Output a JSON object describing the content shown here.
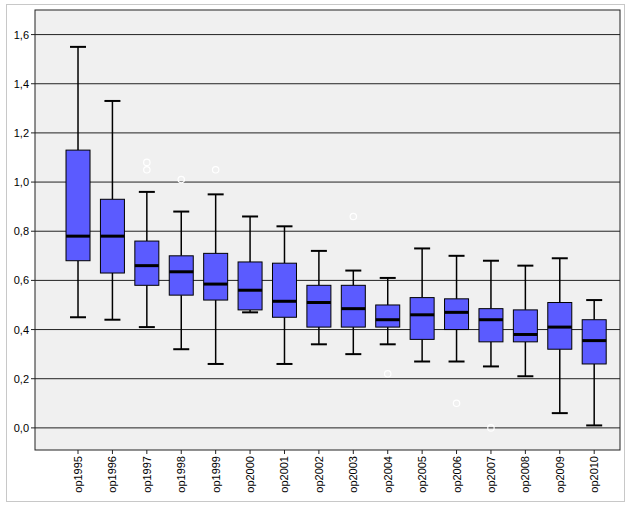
{
  "chart_data": {
    "type": "box",
    "categories": [
      "op1995",
      "op1996",
      "op1997",
      "op1998",
      "op1999",
      "op2000",
      "op2001",
      "op2002",
      "op2003",
      "op2004",
      "op2005",
      "op2006",
      "op2007",
      "op2008",
      "op2009",
      "op2010"
    ],
    "min": [
      0.45,
      0.44,
      0.41,
      0.32,
      0.26,
      0.47,
      0.26,
      0.34,
      0.3,
      0.34,
      0.27,
      0.27,
      0.25,
      0.21,
      0.06,
      0.01
    ],
    "q1": [
      0.68,
      0.63,
      0.58,
      0.54,
      0.52,
      0.48,
      0.45,
      0.41,
      0.41,
      0.41,
      0.36,
      0.4,
      0.35,
      0.35,
      0.32,
      0.26
    ],
    "median": [
      0.78,
      0.78,
      0.66,
      0.635,
      0.585,
      0.56,
      0.515,
      0.51,
      0.485,
      0.44,
      0.46,
      0.47,
      0.44,
      0.38,
      0.41,
      0.355
    ],
    "q3": [
      1.13,
      0.93,
      0.76,
      0.7,
      0.71,
      0.675,
      0.67,
      0.58,
      0.58,
      0.5,
      0.53,
      0.525,
      0.485,
      0.48,
      0.51,
      0.44
    ],
    "max": [
      1.55,
      1.33,
      0.96,
      0.88,
      0.95,
      0.86,
      0.82,
      0.72,
      0.64,
      0.61,
      0.73,
      0.7,
      0.68,
      0.66,
      0.69,
      0.52
    ],
    "outliers": [
      [],
      [],
      [
        1.05,
        1.08
      ],
      [
        1.01
      ],
      [
        1.05
      ],
      [],
      [],
      [],
      [
        0.86
      ],
      [
        0.22
      ],
      [],
      [
        0.1
      ],
      [
        0.0
      ],
      [],
      [],
      []
    ],
    "color": "#5b5bff",
    "ylim": [
      -0.09,
      1.7
    ],
    "yticks": [
      {
        "value": 0,
        "label": "0,0"
      },
      {
        "value": 0.2,
        "label": "0,2"
      },
      {
        "value": 0.4,
        "label": "0,4"
      },
      {
        "value": 0.6,
        "label": "0,6"
      },
      {
        "value": 0.8,
        "label": "0,8"
      },
      {
        "value": 1.0,
        "label": "1,0"
      },
      {
        "value": 1.2,
        "label": "1,2"
      },
      {
        "value": 1.4,
        "label": "1,4"
      },
      {
        "value": 1.6,
        "label": "1,6"
      }
    ],
    "grid": true
  }
}
